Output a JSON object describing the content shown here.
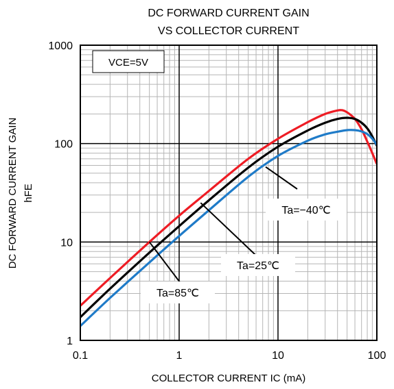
{
  "chart_data": {
    "type": "line",
    "title_lines": [
      "DC FORWARD CURRENT GAIN",
      "VS COLLECTOR CURRENT"
    ],
    "xlabel": "COLLECTOR CURRENT  IC (mA)",
    "ylabel_lines": [
      "DC FORWARD CURRENT GAIN",
      "hFE"
    ],
    "xscale": "log",
    "yscale": "log",
    "xlim": [
      0.1,
      100
    ],
    "ylim": [
      1,
      1000
    ],
    "x_ticks": [
      {
        "value": 0.1,
        "label": "0.1"
      },
      {
        "value": 1,
        "label": "1"
      },
      {
        "value": 10,
        "label": "10"
      },
      {
        "value": 100,
        "label": "100"
      }
    ],
    "y_ticks": [
      {
        "value": 1,
        "label": "1"
      },
      {
        "value": 10,
        "label": "10"
      },
      {
        "value": 100,
        "label": "100"
      },
      {
        "value": 1000,
        "label": "1000"
      }
    ],
    "grid": true,
    "condition_label": "VCE=5V",
    "series": [
      {
        "name": "Ta=85℃",
        "color": "#ee1c24",
        "points": [
          [
            0.1,
            2.25
          ],
          [
            0.2,
            4.3
          ],
          [
            0.5,
            10
          ],
          [
            1,
            18.5
          ],
          [
            2,
            33
          ],
          [
            5,
            70
          ],
          [
            10,
            112
          ],
          [
            20,
            165
          ],
          [
            30,
            200
          ],
          [
            40,
            217
          ],
          [
            45,
            218
          ],
          [
            50,
            208
          ],
          [
            60,
            178
          ],
          [
            70,
            140
          ],
          [
            80,
            105
          ],
          [
            90,
            80
          ],
          [
            100,
            62
          ]
        ]
      },
      {
        "name": "Ta=25℃",
        "color": "#000000",
        "points": [
          [
            0.1,
            1.72
          ],
          [
            0.2,
            3.35
          ],
          [
            0.5,
            7.8
          ],
          [
            1,
            14.5
          ],
          [
            2,
            26.5
          ],
          [
            5,
            57
          ],
          [
            10,
            93
          ],
          [
            20,
            136
          ],
          [
            30,
            163
          ],
          [
            40,
            178
          ],
          [
            50,
            183
          ],
          [
            60,
            178
          ],
          [
            70,
            163
          ],
          [
            80,
            143
          ],
          [
            90,
            118
          ],
          [
            100,
            95
          ]
        ]
      },
      {
        "name": "Ta=−40℃",
        "color": "#1f7bc8",
        "points": [
          [
            0.1,
            1.4
          ],
          [
            0.2,
            2.7
          ],
          [
            0.5,
            6.2
          ],
          [
            1,
            11.5
          ],
          [
            2,
            21
          ],
          [
            5,
            46
          ],
          [
            10,
            75
          ],
          [
            20,
            107
          ],
          [
            30,
            124
          ],
          [
            40,
            132
          ],
          [
            50,
            137
          ],
          [
            60,
            137
          ],
          [
            70,
            133
          ],
          [
            80,
            125
          ],
          [
            90,
            112
          ],
          [
            100,
            97
          ]
        ]
      }
    ],
    "annotations": [
      {
        "text": "Ta=−40℃",
        "arrow_to": [
          7.5,
          58
        ]
      },
      {
        "text": "Ta=25℃",
        "arrow_to": [
          1.65,
          25
        ]
      },
      {
        "text": "Ta=85℃",
        "arrow_to": [
          0.5,
          10
        ]
      }
    ]
  }
}
